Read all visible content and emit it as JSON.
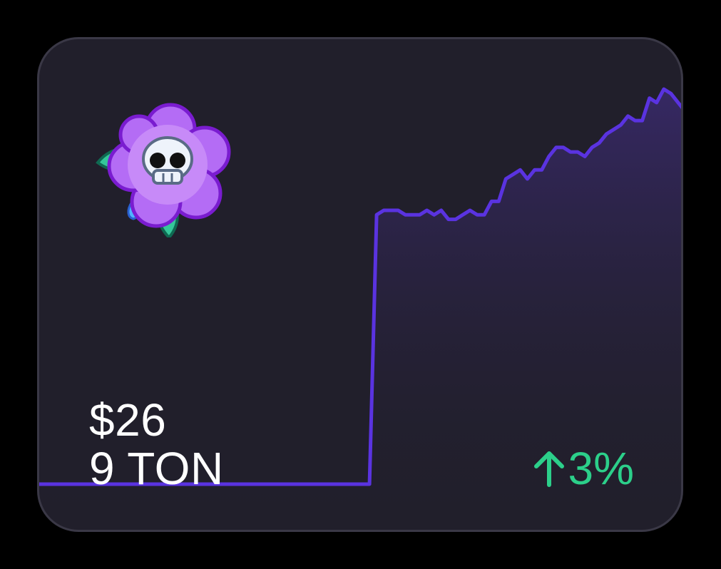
{
  "card": {
    "icon": "skull-flower-icon",
    "usd_price": "$26",
    "ton_price": "9 TON",
    "change": {
      "direction_icon": "arrow-up-icon",
      "value": "3%"
    }
  },
  "colors": {
    "background": "#211f2b",
    "line": "#5a33e0",
    "fill_top": "#3a2a6e",
    "positive": "#2ccf8a",
    "text": "#ffffff"
  },
  "chart_data": {
    "type": "area",
    "x": [
      0,
      1,
      2,
      3,
      4,
      5,
      6,
      7,
      8,
      9,
      10,
      11,
      12,
      13,
      14,
      15,
      16,
      17,
      18,
      19,
      20,
      21,
      22,
      23,
      24,
      25,
      26,
      27,
      28,
      29,
      30,
      31,
      32,
      33,
      34,
      35,
      36,
      37,
      38,
      39,
      40,
      41,
      42,
      43,
      44,
      45,
      46,
      47,
      48,
      49,
      50,
      51,
      52,
      53,
      54,
      55,
      56,
      57,
      58,
      59,
      60,
      61,
      62,
      63,
      64,
      65,
      66,
      67,
      68,
      69,
      70,
      71,
      72,
      73,
      74,
      75,
      76,
      77,
      78,
      79,
      80,
      81,
      82,
      83,
      84,
      85,
      86,
      87,
      88,
      89,
      90
    ],
    "values": [
      0,
      0,
      0,
      0,
      0,
      0,
      0,
      0,
      0,
      0,
      0,
      0,
      0,
      0,
      0,
      0,
      0,
      0,
      0,
      0,
      0,
      0,
      0,
      0,
      0,
      0,
      0,
      0,
      0,
      0,
      0,
      0,
      0,
      0,
      0,
      0,
      0,
      0,
      0,
      0,
      0,
      0,
      0,
      0,
      0,
      0,
      0,
      60,
      61,
      61,
      61,
      60,
      60,
      60,
      61,
      60,
      61,
      59,
      59,
      60,
      61,
      60,
      60,
      63,
      63,
      68,
      69,
      70,
      68,
      70,
      70,
      73,
      75,
      75,
      74,
      74,
      73,
      75,
      76,
      78,
      79,
      80,
      82,
      81,
      81,
      86,
      85,
      88,
      87,
      85,
      83
    ]
  }
}
